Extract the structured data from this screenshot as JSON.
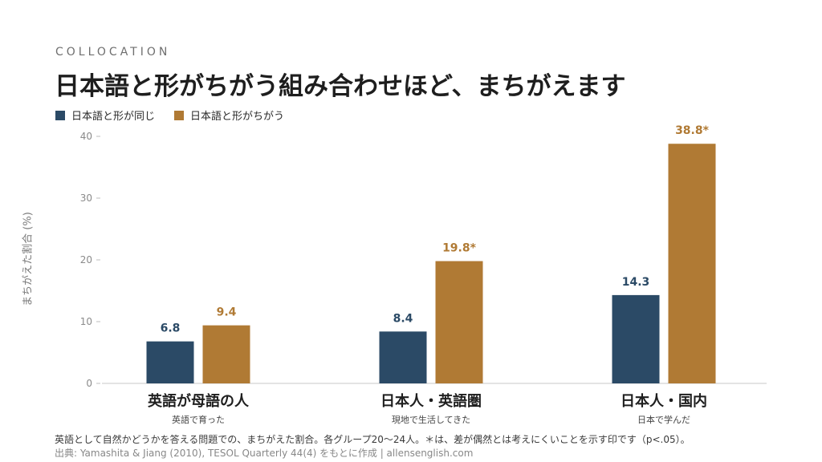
{
  "eyebrow": "COLLOCATION",
  "title": "日本語と形がちがう組み合わせほど、まちがえます",
  "colors": {
    "same": "#2b4a66",
    "different": "#b07a34"
  },
  "chart_data": {
    "type": "bar",
    "ylabel": "まちがえた割合 (%)",
    "ylim": [
      0,
      40
    ],
    "yticks": [
      "0",
      "10",
      "20",
      "30",
      "40"
    ],
    "grid": false,
    "legend_position": "top-left",
    "categories": [
      "英語が母語の人",
      "日本人・英語圏",
      "日本人・国内"
    ],
    "subcategories": [
      "英語で育った",
      "現地で生活してきた",
      "日本で学んだ"
    ],
    "series": [
      {
        "name": "日本語と形が同じ",
        "values": [
          6.8,
          8.4,
          14.3
        ],
        "labels": [
          "6.8",
          "8.4",
          "14.3"
        ]
      },
      {
        "name": "日本語と形がちがう",
        "values": [
          9.4,
          19.8,
          38.8
        ],
        "labels": [
          "9.4",
          "19.8*",
          "38.8*"
        ]
      }
    ]
  },
  "footnote": "英語として自然かどうかを答える問題での、まちがえた割合。各グループ20〜24人。＊は、差が偶然とは考えにくいことを示す印です（p<.05）。",
  "source": "出典: Yamashita & Jiang (2010), TESOL Quarterly 44(4) をもとに作成 | allensenglish.com"
}
